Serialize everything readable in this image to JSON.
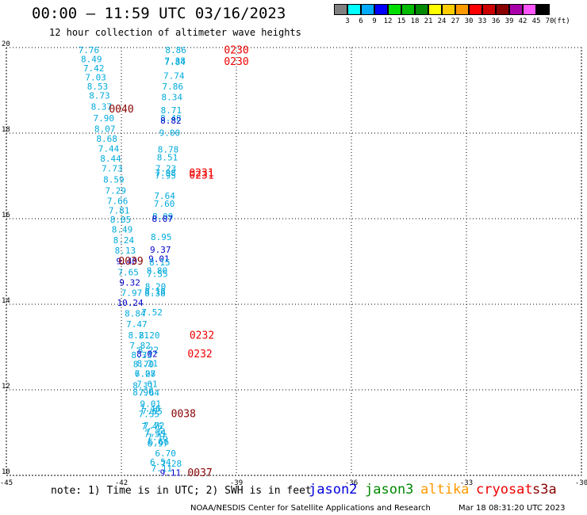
{
  "header": {
    "title": "00:00 — 11:59 UTC 03/16/2023",
    "subtitle": "12 hour collection of altimeter wave heights"
  },
  "color_scale": {
    "unit": "(ft)",
    "swatches": [
      {
        "label": "3",
        "color": "#808080"
      },
      {
        "label": "6",
        "color": "#00ffff"
      },
      {
        "label": "9",
        "color": "#00aaff"
      },
      {
        "label": "12",
        "color": "#0000ff"
      },
      {
        "label": "15",
        "color": "#00dd00"
      },
      {
        "label": "18",
        "color": "#00bb00"
      },
      {
        "label": "21",
        "color": "#008800"
      },
      {
        "label": "24",
        "color": "#ffff00"
      },
      {
        "label": "27",
        "color": "#ffcc00"
      },
      {
        "label": "30",
        "color": "#ff9900"
      },
      {
        "label": "33",
        "color": "#ff0000"
      },
      {
        "label": "36",
        "color": "#cc0000"
      },
      {
        "label": "39",
        "color": "#880000"
      },
      {
        "label": "42",
        "color": "#aa00aa"
      },
      {
        "label": "45",
        "color": "#ff55ff"
      },
      {
        "label": "70",
        "color": "#000000"
      }
    ]
  },
  "chart_data": {
    "type": "scatter",
    "title": "00:00 — 11:59 UTC 03/16/2023",
    "subtitle": "12 hour collection of altimeter wave heights",
    "xlabel": "",
    "ylabel": "",
    "xlim": [
      -45,
      -30
    ],
    "ylim": [
      10,
      20
    ],
    "xticks": [
      "-45",
      "-42",
      "-39",
      "-36",
      "-33",
      "-30"
    ],
    "yticks": [
      "20",
      "18",
      "16",
      "14",
      "12",
      "10"
    ],
    "grid": true,
    "colors": {
      "cyan": "#00aadd",
      "blue": "#0000cc",
      "red": "#ee0000",
      "darkred": "#880000"
    },
    "points": [
      {
        "x": -42.85,
        "y": 19.93,
        "text": "7.76",
        "c": "cyan"
      },
      {
        "x": -42.78,
        "y": 19.71,
        "text": "8.49",
        "c": "cyan"
      },
      {
        "x": -42.72,
        "y": 19.5,
        "text": "7.42",
        "c": "cyan"
      },
      {
        "x": -42.67,
        "y": 19.29,
        "text": "7.03",
        "c": "cyan"
      },
      {
        "x": -42.62,
        "y": 19.07,
        "text": "8.53",
        "c": "cyan"
      },
      {
        "x": -42.57,
        "y": 18.86,
        "text": "8.73",
        "c": "cyan"
      },
      {
        "x": -42.52,
        "y": 18.6,
        "text": "8.37",
        "c": "cyan"
      },
      {
        "x": -42.46,
        "y": 18.33,
        "text": "7.90",
        "c": "cyan"
      },
      {
        "x": -42.43,
        "y": 18.08,
        "text": "8.07",
        "c": "cyan"
      },
      {
        "x": -42.38,
        "y": 17.85,
        "text": "8.68",
        "c": "cyan"
      },
      {
        "x": -42.33,
        "y": 17.62,
        "text": "7.44",
        "c": "cyan"
      },
      {
        "x": -42.28,
        "y": 17.39,
        "text": "8.44",
        "c": "cyan"
      },
      {
        "x": -42.24,
        "y": 17.16,
        "text": "7.73",
        "c": "cyan"
      },
      {
        "x": -42.2,
        "y": 16.9,
        "text": "8.59",
        "c": "cyan"
      },
      {
        "x": -42.15,
        "y": 16.64,
        "text": "7.29",
        "c": "cyan"
      },
      {
        "x": -42.1,
        "y": 16.4,
        "text": "7.66",
        "c": "cyan"
      },
      {
        "x": -42.06,
        "y": 16.18,
        "text": "7.81",
        "c": "cyan"
      },
      {
        "x": -42.02,
        "y": 15.96,
        "text": "8.05",
        "c": "cyan"
      },
      {
        "x": -41.98,
        "y": 15.73,
        "text": "8.49",
        "c": "cyan"
      },
      {
        "x": -41.94,
        "y": 15.48,
        "text": "8.24",
        "c": "cyan"
      },
      {
        "x": -41.9,
        "y": 15.24,
        "text": "8.13",
        "c": "cyan"
      },
      {
        "x": -41.86,
        "y": 14.99,
        "text": "9.40",
        "c": "blue"
      },
      {
        "x": -41.82,
        "y": 14.73,
        "text": "7.65",
        "c": "cyan"
      },
      {
        "x": -41.78,
        "y": 14.49,
        "text": "9.32",
        "c": "blue"
      },
      {
        "x": -41.73,
        "y": 14.25,
        "text": "7.97",
        "c": "cyan"
      },
      {
        "x": -41.77,
        "y": 14.02,
        "text": "10.24",
        "c": "blue"
      },
      {
        "x": -41.64,
        "y": 13.77,
        "text": "8.84",
        "c": "cyan"
      },
      {
        "x": -41.6,
        "y": 13.52,
        "text": "7.47",
        "c": "cyan"
      },
      {
        "x": -41.55,
        "y": 13.26,
        "text": "8.21",
        "c": "cyan"
      },
      {
        "x": -41.51,
        "y": 13.02,
        "text": "7.82",
        "c": "cyan"
      },
      {
        "x": -41.47,
        "y": 12.8,
        "text": "8.33",
        "c": "cyan"
      },
      {
        "x": -41.42,
        "y": 12.58,
        "text": "8.79",
        "c": "cyan"
      },
      {
        "x": -41.38,
        "y": 12.36,
        "text": "6.27",
        "c": "cyan"
      },
      {
        "x": -41.33,
        "y": 12.12,
        "text": "7.61",
        "c": "cyan"
      },
      {
        "x": -41.28,
        "y": 11.92,
        "text": "7.64",
        "c": "cyan"
      },
      {
        "x": -41.24,
        "y": 11.66,
        "text": "9.01",
        "c": "cyan"
      },
      {
        "x": -41.2,
        "y": 11.48,
        "text": "7.65",
        "c": "cyan"
      },
      {
        "x": -41.15,
        "y": 11.15,
        "text": "7.72",
        "c": "cyan"
      },
      {
        "x": -41.11,
        "y": 10.99,
        "text": "7.34",
        "c": "cyan"
      },
      {
        "x": -41.06,
        "y": 10.88,
        "text": "7.16",
        "c": "cyan"
      },
      {
        "x": -41.03,
        "y": 10.77,
        "text": "6.66",
        "c": "cyan"
      },
      {
        "x": -40.98,
        "y": 10.3,
        "text": "6.54",
        "c": "cyan"
      },
      {
        "x": -40.95,
        "y": 10.15,
        "text": "7.11",
        "c": "cyan"
      },
      {
        "x": -40.58,
        "y": 19.93,
        "text": "8.86",
        "c": "cyan"
      },
      {
        "x": -40.6,
        "y": 19.68,
        "text": "7.38",
        "c": "cyan"
      },
      {
        "x": -40.6,
        "y": 19.65,
        "text": "7.84",
        "c": "cyan"
      },
      {
        "x": -40.63,
        "y": 19.32,
        "text": "7.74",
        "c": "cyan"
      },
      {
        "x": -40.66,
        "y": 19.07,
        "text": "7.86",
        "c": "cyan"
      },
      {
        "x": -40.68,
        "y": 18.82,
        "text": "8.34",
        "c": "cyan"
      },
      {
        "x": -40.7,
        "y": 18.52,
        "text": "8.71",
        "c": "cyan"
      },
      {
        "x": -40.71,
        "y": 18.33,
        "text": "8.48",
        "c": "cyan"
      },
      {
        "x": -40.71,
        "y": 18.28,
        "text": "8.82",
        "c": "blue"
      },
      {
        "x": -40.74,
        "y": 17.99,
        "text": "9.00",
        "c": "cyan"
      },
      {
        "x": -40.78,
        "y": 17.6,
        "text": "8.78",
        "c": "cyan"
      },
      {
        "x": -40.8,
        "y": 17.42,
        "text": "8.51",
        "c": "cyan"
      },
      {
        "x": -40.84,
        "y": 17.16,
        "text": "7.23",
        "c": "cyan"
      },
      {
        "x": -40.85,
        "y": 17.06,
        "text": "7.98",
        "c": "cyan"
      },
      {
        "x": -40.85,
        "y": 16.99,
        "text": "7.95",
        "c": "cyan"
      },
      {
        "x": -40.87,
        "y": 16.52,
        "text": "7.64",
        "c": "cyan"
      },
      {
        "x": -40.88,
        "y": 16.33,
        "text": "7.60",
        "c": "cyan"
      },
      {
        "x": -40.92,
        "y": 16.04,
        "text": "8.09",
        "c": "cyan"
      },
      {
        "x": -40.93,
        "y": 15.98,
        "text": "8.07",
        "c": "blue"
      },
      {
        "x": -40.96,
        "y": 15.56,
        "text": "8.95",
        "c": "cyan"
      },
      {
        "x": -40.98,
        "y": 15.26,
        "text": "9.37",
        "c": "blue"
      },
      {
        "x": -41.02,
        "y": 15.05,
        "text": "9.01",
        "c": "blue"
      },
      {
        "x": -41.0,
        "y": 14.96,
        "text": "8.15",
        "c": "cyan"
      },
      {
        "x": -41.07,
        "y": 14.77,
        "text": "8.80",
        "c": "cyan"
      },
      {
        "x": -41.06,
        "y": 14.69,
        "text": "7.55",
        "c": "cyan"
      },
      {
        "x": -41.11,
        "y": 14.4,
        "text": "8.20",
        "c": "cyan"
      },
      {
        "x": -41.12,
        "y": 14.29,
        "text": "8.18",
        "c": "cyan"
      },
      {
        "x": -41.12,
        "y": 14.24,
        "text": "8.38",
        "c": "cyan"
      },
      {
        "x": -41.2,
        "y": 13.8,
        "text": "7.52",
        "c": "cyan"
      },
      {
        "x": -41.27,
        "y": 13.26,
        "text": "8.20",
        "c": "cyan"
      },
      {
        "x": -41.3,
        "y": 12.92,
        "text": "8.22",
        "c": "cyan"
      },
      {
        "x": -41.33,
        "y": 12.82,
        "text": "8.02",
        "c": "blue"
      },
      {
        "x": -41.32,
        "y": 12.6,
        "text": "8.21",
        "c": "cyan"
      },
      {
        "x": -41.38,
        "y": 12.36,
        "text": "7.08",
        "c": "cyan"
      },
      {
        "x": -41.43,
        "y": 12.08,
        "text": "8.11",
        "c": "cyan"
      },
      {
        "x": -41.43,
        "y": 11.93,
        "text": "8.90",
        "c": "cyan"
      },
      {
        "x": -41.25,
        "y": 11.55,
        "text": "7.46",
        "c": "cyan"
      },
      {
        "x": -41.28,
        "y": 11.42,
        "text": "7.55",
        "c": "cyan"
      },
      {
        "x": -41.2,
        "y": 11.13,
        "text": "7.46",
        "c": "cyan"
      },
      {
        "x": -41.13,
        "y": 10.95,
        "text": "7.55",
        "c": "cyan"
      },
      {
        "x": -41.05,
        "y": 10.73,
        "text": "6.97",
        "c": "cyan"
      },
      {
        "x": -40.85,
        "y": 10.5,
        "text": "6.70",
        "c": "cyan"
      },
      {
        "x": -40.7,
        "y": 10.26,
        "text": "7.28",
        "c": "cyan"
      },
      {
        "x": -40.72,
        "y": 10.05,
        "text": "9.11",
        "c": "blue"
      },
      {
        "x": -39.0,
        "y": 19.93,
        "text": "0230",
        "c": "red"
      },
      {
        "x": -39.0,
        "y": 19.66,
        "text": "0230",
        "c": "red"
      },
      {
        "x": -42.0,
        "y": 18.55,
        "text": "0040",
        "c": "darkred"
      },
      {
        "x": -39.91,
        "y": 17.06,
        "text": "0231",
        "c": "red"
      },
      {
        "x": -39.91,
        "y": 17.0,
        "text": "0231",
        "c": "red"
      },
      {
        "x": -41.75,
        "y": 14.99,
        "text": "0039",
        "c": "darkred"
      },
      {
        "x": -39.9,
        "y": 13.26,
        "text": "0232",
        "c": "red"
      },
      {
        "x": -39.95,
        "y": 12.82,
        "text": "0232",
        "c": "red"
      },
      {
        "x": -40.38,
        "y": 11.43,
        "text": "0038",
        "c": "darkred"
      },
      {
        "x": -39.95,
        "y": 10.05,
        "text": "0037",
        "c": "darkred"
      }
    ]
  },
  "notes": {
    "text": "note: 1) Time is in UTC; 2) SWH is in feet"
  },
  "satellites": [
    {
      "name": "jason2",
      "color": "#0000dd"
    },
    {
      "name": "jason3",
      "color": "#008800"
    },
    {
      "name": "altika",
      "color": "#ff9900"
    },
    {
      "name": "cryosat",
      "color": "#ee0000"
    },
    {
      "name": "s3a",
      "color": "#880000"
    }
  ],
  "footer": {
    "center": "NOAA/NESDIS Center for Satellite Applications and Research",
    "timestamp": "Mar 18 08:31:20 UTC 2023"
  }
}
